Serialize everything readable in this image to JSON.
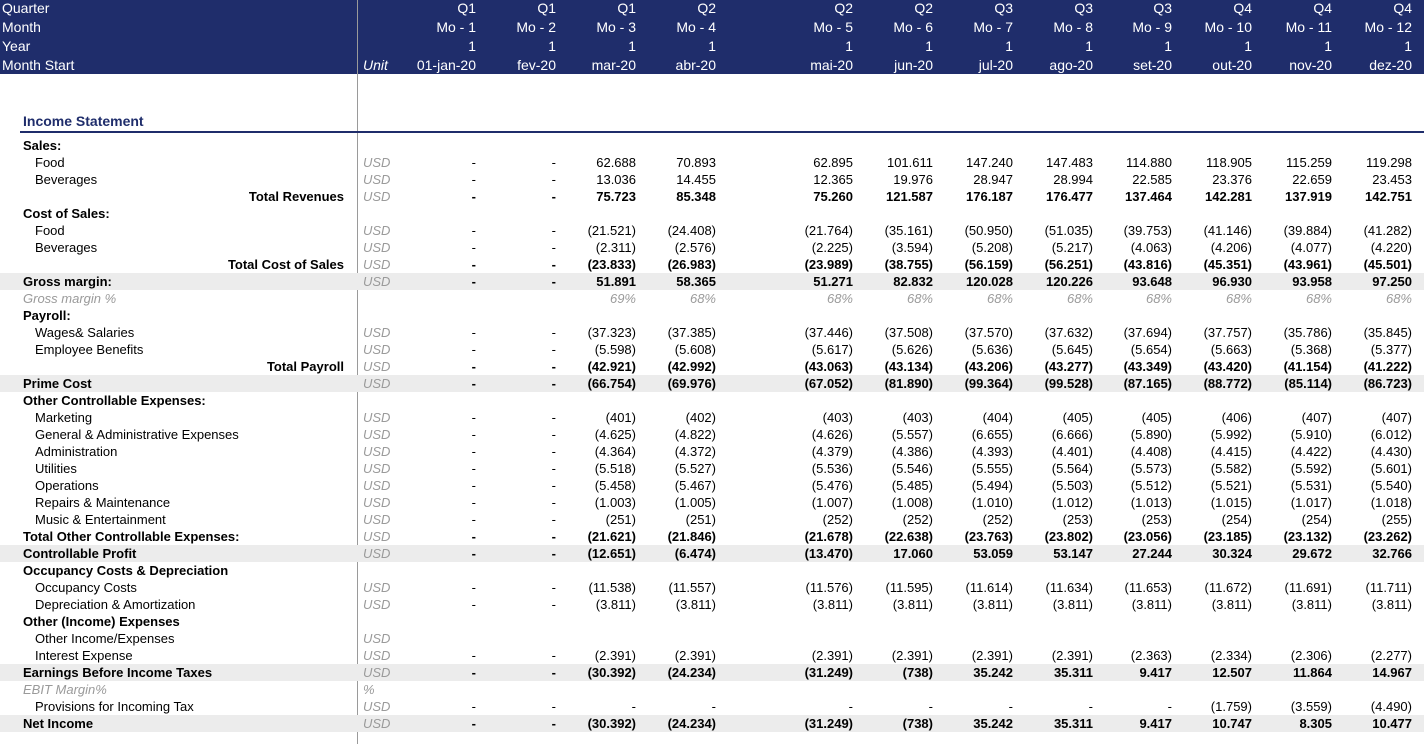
{
  "header": {
    "labels": [
      "Quarter",
      "Month",
      "Year",
      "Month Start"
    ],
    "unit": "Unit",
    "quarters": [
      "Q1",
      "Q1",
      "Q1",
      "Q2",
      "Q2",
      "Q2",
      "Q3",
      "Q3",
      "Q3",
      "Q4",
      "Q4",
      "Q4"
    ],
    "months": [
      "Mo - 1",
      "Mo - 2",
      "Mo - 3",
      "Mo - 4",
      "Mo - 5",
      "Mo - 6",
      "Mo - 7",
      "Mo - 8",
      "Mo - 9",
      "Mo - 10",
      "Mo - 11",
      "Mo - 12"
    ],
    "years": [
      "1",
      "1",
      "1",
      "1",
      "1",
      "1",
      "1",
      "1",
      "1",
      "1",
      "1",
      "1"
    ],
    "starts": [
      "01-jan-20",
      "fev-20",
      "mar-20",
      "abr-20",
      "mai-20",
      "jun-20",
      "jul-20",
      "ago-20",
      "set-20",
      "out-20",
      "nov-20",
      "dez-20"
    ]
  },
  "section_title": "Income Statement",
  "rows": [
    {
      "label": "Sales:",
      "unit": "",
      "v": [
        "",
        "",
        "",
        "",
        "",
        "",
        "",
        "",
        "",
        "",
        "",
        ""
      ]
    },
    {
      "label": "Food",
      "unit": "USD",
      "v": [
        "-",
        "-",
        "62.688",
        "70.893",
        "62.895",
        "101.611",
        "147.240",
        "147.483",
        "114.880",
        "118.905",
        "115.259",
        "119.298"
      ]
    },
    {
      "label": "Beverages",
      "unit": "USD",
      "v": [
        "-",
        "-",
        "13.036",
        "14.455",
        "12.365",
        "19.976",
        "28.947",
        "28.994",
        "22.585",
        "23.376",
        "22.659",
        "23.453"
      ]
    },
    {
      "label": "Total Revenues",
      "unit": "USD",
      "v": [
        "-",
        "-",
        "75.723",
        "85.348",
        "75.260",
        "121.587",
        "176.187",
        "176.477",
        "137.464",
        "142.281",
        "137.919",
        "142.751"
      ]
    },
    {
      "label": "Cost of Sales:",
      "unit": "",
      "v": [
        "",
        "",
        "",
        "",
        "",
        "",
        "",
        "",
        "",
        "",
        "",
        ""
      ]
    },
    {
      "label": "Food",
      "unit": "USD",
      "v": [
        "-",
        "-",
        "(21.521)",
        "(24.408)",
        "(21.764)",
        "(35.161)",
        "(50.950)",
        "(51.035)",
        "(39.753)",
        "(41.146)",
        "(39.884)",
        "(41.282)"
      ]
    },
    {
      "label": "Beverages",
      "unit": "USD",
      "v": [
        "-",
        "-",
        "(2.311)",
        "(2.576)",
        "(2.225)",
        "(3.594)",
        "(5.208)",
        "(5.217)",
        "(4.063)",
        "(4.206)",
        "(4.077)",
        "(4.220)"
      ]
    },
    {
      "label": "Total Cost of Sales",
      "unit": "USD",
      "v": [
        "-",
        "-",
        "(23.833)",
        "(26.983)",
        "(23.989)",
        "(38.755)",
        "(56.159)",
        "(56.251)",
        "(43.816)",
        "(45.351)",
        "(43.961)",
        "(45.501)"
      ]
    },
    {
      "label": "Gross margin:",
      "unit": "USD",
      "v": [
        "-",
        "-",
        "51.891",
        "58.365",
        "51.271",
        "82.832",
        "120.028",
        "120.226",
        "93.648",
        "96.930",
        "93.958",
        "97.250"
      ]
    },
    {
      "label": "Gross margin %",
      "unit": "",
      "v": [
        "",
        "",
        "69%",
        "68%",
        "68%",
        "68%",
        "68%",
        "68%",
        "68%",
        "68%",
        "68%",
        "68%"
      ]
    },
    {
      "label": "Payroll:",
      "unit": "",
      "v": [
        "",
        "",
        "",
        "",
        "",
        "",
        "",
        "",
        "",
        "",
        "",
        ""
      ]
    },
    {
      "label": "Wages& Salaries",
      "unit": "USD",
      "v": [
        "-",
        "-",
        "(37.323)",
        "(37.385)",
        "(37.446)",
        "(37.508)",
        "(37.570)",
        "(37.632)",
        "(37.694)",
        "(37.757)",
        "(35.786)",
        "(35.845)"
      ]
    },
    {
      "label": "Employee Benefits",
      "unit": "USD",
      "v": [
        "-",
        "-",
        "(5.598)",
        "(5.608)",
        "(5.617)",
        "(5.626)",
        "(5.636)",
        "(5.645)",
        "(5.654)",
        "(5.663)",
        "(5.368)",
        "(5.377)"
      ]
    },
    {
      "label": "Total Payroll",
      "unit": "USD",
      "v": [
        "-",
        "-",
        "(42.921)",
        "(42.992)",
        "(43.063)",
        "(43.134)",
        "(43.206)",
        "(43.277)",
        "(43.349)",
        "(43.420)",
        "(41.154)",
        "(41.222)"
      ]
    },
    {
      "label": "Prime Cost",
      "unit": "USD",
      "v": [
        "-",
        "-",
        "(66.754)",
        "(69.976)",
        "(67.052)",
        "(81.890)",
        "(99.364)",
        "(99.528)",
        "(87.165)",
        "(88.772)",
        "(85.114)",
        "(86.723)"
      ]
    },
    {
      "label": "Other Controllable Expenses:",
      "unit": "",
      "v": [
        "",
        "",
        "",
        "",
        "",
        "",
        "",
        "",
        "",
        "",
        "",
        ""
      ]
    },
    {
      "label": "Marketing",
      "unit": "USD",
      "v": [
        "-",
        "-",
        "(401)",
        "(402)",
        "(403)",
        "(403)",
        "(404)",
        "(405)",
        "(405)",
        "(406)",
        "(407)",
        "(407)"
      ]
    },
    {
      "label": "General & Administrative Expenses",
      "unit": "USD",
      "v": [
        "-",
        "-",
        "(4.625)",
        "(4.822)",
        "(4.626)",
        "(5.557)",
        "(6.655)",
        "(6.666)",
        "(5.890)",
        "(5.992)",
        "(5.910)",
        "(6.012)"
      ]
    },
    {
      "label": "Administration",
      "unit": "USD",
      "v": [
        "-",
        "-",
        "(4.364)",
        "(4.372)",
        "(4.379)",
        "(4.386)",
        "(4.393)",
        "(4.401)",
        "(4.408)",
        "(4.415)",
        "(4.422)",
        "(4.430)"
      ]
    },
    {
      "label": "Utilities",
      "unit": "USD",
      "v": [
        "-",
        "-",
        "(5.518)",
        "(5.527)",
        "(5.536)",
        "(5.546)",
        "(5.555)",
        "(5.564)",
        "(5.573)",
        "(5.582)",
        "(5.592)",
        "(5.601)"
      ]
    },
    {
      "label": "Operations",
      "unit": "USD",
      "v": [
        "-",
        "-",
        "(5.458)",
        "(5.467)",
        "(5.476)",
        "(5.485)",
        "(5.494)",
        "(5.503)",
        "(5.512)",
        "(5.521)",
        "(5.531)",
        "(5.540)"
      ]
    },
    {
      "label": "Repairs & Maintenance",
      "unit": "USD",
      "v": [
        "-",
        "-",
        "(1.003)",
        "(1.005)",
        "(1.007)",
        "(1.008)",
        "(1.010)",
        "(1.012)",
        "(1.013)",
        "(1.015)",
        "(1.017)",
        "(1.018)"
      ]
    },
    {
      "label": "Music & Entertainment",
      "unit": "USD",
      "v": [
        "-",
        "-",
        "(251)",
        "(251)",
        "(252)",
        "(252)",
        "(252)",
        "(253)",
        "(253)",
        "(254)",
        "(254)",
        "(255)"
      ]
    },
    {
      "label": "Total Other Controllable Expenses:",
      "unit": "USD",
      "v": [
        "-",
        "-",
        "(21.621)",
        "(21.846)",
        "(21.678)",
        "(22.638)",
        "(23.763)",
        "(23.802)",
        "(23.056)",
        "(23.185)",
        "(23.132)",
        "(23.262)"
      ]
    },
    {
      "label": "Controllable Profit",
      "unit": "USD",
      "v": [
        "-",
        "-",
        "(12.651)",
        "(6.474)",
        "(13.470)",
        "17.060",
        "53.059",
        "53.147",
        "27.244",
        "30.324",
        "29.672",
        "32.766"
      ]
    },
    {
      "label": "Occupancy Costs & Depreciation",
      "unit": "",
      "v": [
        "",
        "",
        "",
        "",
        "",
        "",
        "",
        "",
        "",
        "",
        "",
        ""
      ]
    },
    {
      "label": "Occupancy Costs",
      "unit": "USD",
      "v": [
        "-",
        "-",
        "(11.538)",
        "(11.557)",
        "(11.576)",
        "(11.595)",
        "(11.614)",
        "(11.634)",
        "(11.653)",
        "(11.672)",
        "(11.691)",
        "(11.711)"
      ]
    },
    {
      "label": "Depreciation & Amortization",
      "unit": "USD",
      "v": [
        "-",
        "-",
        "(3.811)",
        "(3.811)",
        "(3.811)",
        "(3.811)",
        "(3.811)",
        "(3.811)",
        "(3.811)",
        "(3.811)",
        "(3.811)",
        "(3.811)"
      ]
    },
    {
      "label": "Other (Income) Expenses",
      "unit": "",
      "v": [
        "",
        "",
        "",
        "",
        "",
        "",
        "",
        "",
        "",
        "",
        "",
        ""
      ]
    },
    {
      "label": "Other Income/Expenses",
      "unit": "USD",
      "v": [
        "",
        "",
        "",
        "",
        "",
        "",
        "",
        "",
        "",
        "",
        "",
        ""
      ]
    },
    {
      "label": "Interest Expense",
      "unit": "USD",
      "v": [
        "-",
        "-",
        "(2.391)",
        "(2.391)",
        "(2.391)",
        "(2.391)",
        "(2.391)",
        "(2.391)",
        "(2.363)",
        "(2.334)",
        "(2.306)",
        "(2.277)"
      ]
    },
    {
      "label": "Earnings Before Income Taxes",
      "unit": "USD",
      "v": [
        "-",
        "-",
        "(30.392)",
        "(24.234)",
        "(31.249)",
        "(738)",
        "35.242",
        "35.311",
        "9.417",
        "12.507",
        "11.864",
        "14.967"
      ]
    },
    {
      "label": "EBIT Margin%",
      "unit": "%",
      "v": [
        "",
        "",
        "",
        "",
        "",
        "",
        "",
        "",
        "",
        "",
        "",
        ""
      ]
    },
    {
      "label": "Provisions for Incoming Tax",
      "unit": "USD",
      "v": [
        "-",
        "-",
        "-",
        "-",
        "-",
        "-",
        "-",
        "-",
        "-",
        "(1.759)",
        "(3.559)",
        "(4.490)"
      ]
    },
    {
      "label": "Net Income",
      "unit": "USD",
      "v": [
        "-",
        "-",
        "(30.392)",
        "(24.234)",
        "(31.249)",
        "(738)",
        "35.242",
        "35.311",
        "9.417",
        "10.747",
        "8.305",
        "10.477"
      ]
    }
  ]
}
